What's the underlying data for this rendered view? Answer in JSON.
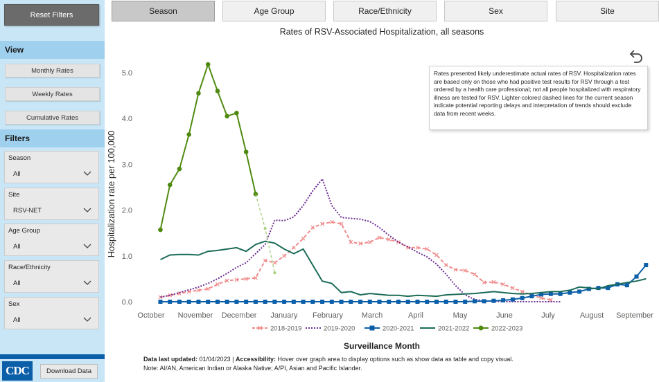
{
  "sidebar": {
    "reset_label": "Reset Filters",
    "view_title": "View",
    "view_buttons": [
      "Monthly Rates",
      "Weekly Rates",
      "Cumulative Rates"
    ],
    "filters_title": "Filters",
    "filters": [
      {
        "label": "Season",
        "value": "All"
      },
      {
        "label": "Site",
        "value": "RSV-NET"
      },
      {
        "label": "Age Group",
        "value": "All"
      },
      {
        "label": "Race/Ethnicity",
        "value": "All"
      },
      {
        "label": "Sex",
        "value": "All"
      }
    ],
    "logo_text": "CDC",
    "download_label": "Download Data"
  },
  "tabs": [
    "Season",
    "Age Group",
    "Race/Ethnicity",
    "Sex",
    "Site"
  ],
  "active_tab": "Season",
  "note": "Rates presented likely underestimate actual rates of RSV. Hospitalization rates are based only on those who had positive test results for RSV through a test ordered by a health care professional; not all people hospitalized with respiratory illness are tested for RSV. Lighter-colored dashed lines for the current season indicate potential reporting delays and interpretation of trends should exclude data from recent weeks.",
  "footer": {
    "updated_label": "Data last updated:",
    "updated_value": "01/04/2023",
    "separator": "|",
    "accessibility_label": "Accessibility:",
    "accessibility_text": "Hover over graph area to display options such as show data as table and copy visual.",
    "note": "Note: AI/AN, American Indian or Alaska Native; A/PI, Asian and Pacific Islander."
  },
  "chart_data": {
    "type": "line",
    "title": "Rates of RSV-Associated Hospitalization, all seasons",
    "xlabel": "Surveillance Month",
    "ylabel": "Hospitalization rate per 100,000",
    "categories": [
      "October",
      "November",
      "December",
      "January",
      "February",
      "March",
      "April",
      "May",
      "June",
      "July",
      "August",
      "September"
    ],
    "yticks": [
      "0.0",
      "1.0",
      "2.0",
      "3.0",
      "4.0",
      "5.0"
    ],
    "ylim": [
      0,
      5.3
    ],
    "x_unit": "surveillance week index (October start = 0, 52 weeks)",
    "xlim": [
      -2,
      52
    ],
    "legend_position": "bottom",
    "grid": false,
    "series": [
      {
        "name": "2018-2019",
        "color": "#f08b8b",
        "style": "dashed-x",
        "points": [
          [
            0,
            0.1
          ],
          [
            1,
            0.14
          ],
          [
            2,
            0.18
          ],
          [
            3,
            0.22
          ],
          [
            4,
            0.25
          ],
          [
            5,
            0.28
          ],
          [
            6,
            0.38
          ],
          [
            7,
            0.46
          ],
          [
            8,
            0.48
          ],
          [
            9,
            0.5
          ],
          [
            10,
            0.52
          ],
          [
            11,
            0.9
          ],
          [
            12,
            0.85
          ],
          [
            13,
            1.0
          ],
          [
            14,
            1.18
          ],
          [
            15,
            1.38
          ],
          [
            16,
            1.62
          ],
          [
            17,
            1.7
          ],
          [
            18,
            1.74
          ],
          [
            19,
            1.7
          ],
          [
            20,
            1.3
          ],
          [
            21,
            1.27
          ],
          [
            22,
            1.3
          ],
          [
            23,
            1.4
          ],
          [
            24,
            1.36
          ],
          [
            25,
            1.3
          ],
          [
            26,
            1.18
          ],
          [
            27,
            1.18
          ],
          [
            28,
            1.15
          ],
          [
            29,
            1.02
          ],
          [
            30,
            0.8
          ],
          [
            31,
            0.7
          ],
          [
            32,
            0.68
          ],
          [
            33,
            0.6
          ],
          [
            34,
            0.42
          ],
          [
            35,
            0.43
          ],
          [
            36,
            0.38
          ],
          [
            37,
            0.3
          ],
          [
            38,
            0.22
          ],
          [
            39,
            0.15
          ],
          [
            40,
            0.08
          ],
          [
            41,
            0.04
          ]
        ]
      },
      {
        "name": "2019-2020",
        "color": "#6a2c91",
        "style": "dotted",
        "points": [
          [
            0,
            0.1
          ],
          [
            1,
            0.14
          ],
          [
            2,
            0.2
          ],
          [
            3,
            0.26
          ],
          [
            4,
            0.32
          ],
          [
            5,
            0.4
          ],
          [
            6,
            0.5
          ],
          [
            7,
            0.62
          ],
          [
            8,
            0.75
          ],
          [
            9,
            0.85
          ],
          [
            10,
            1.05
          ],
          [
            11,
            1.25
          ],
          [
            12,
            1.78
          ],
          [
            13,
            1.77
          ],
          [
            14,
            1.85
          ],
          [
            15,
            2.1
          ],
          [
            16,
            2.42
          ],
          [
            17,
            2.68
          ],
          [
            18,
            2.1
          ],
          [
            19,
            1.84
          ],
          [
            20,
            1.82
          ],
          [
            21,
            1.8
          ],
          [
            22,
            1.75
          ],
          [
            23,
            1.62
          ],
          [
            24,
            1.45
          ],
          [
            25,
            1.3
          ],
          [
            26,
            1.2
          ],
          [
            27,
            1.08
          ],
          [
            28,
            0.98
          ],
          [
            29,
            0.82
          ],
          [
            30,
            0.6
          ],
          [
            31,
            0.35
          ],
          [
            32,
            0.15
          ],
          [
            33,
            0.05
          ],
          [
            34,
            0.02
          ],
          [
            35,
            0.01
          ],
          [
            36,
            0.0
          ],
          [
            37,
            0.0
          ],
          [
            38,
            0.0
          ],
          [
            39,
            0.0
          ],
          [
            40,
            0.0
          ],
          [
            41,
            0.0
          ],
          [
            42,
            0.0
          ]
        ]
      },
      {
        "name": "2020-2021",
        "color": "#0b5ea8",
        "style": "solid-square",
        "points": [
          [
            0,
            0.0
          ],
          [
            1,
            0.0
          ],
          [
            2,
            0.0
          ],
          [
            3,
            0.0
          ],
          [
            4,
            0.0
          ],
          [
            5,
            0.0
          ],
          [
            6,
            0.0
          ],
          [
            7,
            0.0
          ],
          [
            8,
            0.0
          ],
          [
            9,
            0.0
          ],
          [
            10,
            0.0
          ],
          [
            11,
            0.0
          ],
          [
            12,
            0.0
          ],
          [
            13,
            0.0
          ],
          [
            14,
            0.0
          ],
          [
            15,
            0.0
          ],
          [
            16,
            0.0
          ],
          [
            17,
            0.0
          ],
          [
            18,
            0.0
          ],
          [
            19,
            0.0
          ],
          [
            20,
            0.0
          ],
          [
            21,
            0.0
          ],
          [
            22,
            0.0
          ],
          [
            23,
            0.0
          ],
          [
            24,
            0.0
          ],
          [
            25,
            0.0
          ],
          [
            26,
            0.0
          ],
          [
            27,
            0.0
          ],
          [
            28,
            0.0
          ],
          [
            29,
            0.0
          ],
          [
            30,
            0.0
          ],
          [
            31,
            0.0
          ],
          [
            32,
            0.0
          ],
          [
            33,
            0.01
          ],
          [
            34,
            0.01
          ],
          [
            35,
            0.02
          ],
          [
            36,
            0.03
          ],
          [
            37,
            0.05
          ],
          [
            38,
            0.08
          ],
          [
            39,
            0.12
          ],
          [
            40,
            0.16
          ],
          [
            41,
            0.17
          ],
          [
            42,
            0.17
          ],
          [
            43,
            0.2
          ],
          [
            44,
            0.22
          ],
          [
            45,
            0.28
          ],
          [
            46,
            0.3
          ],
          [
            47,
            0.3
          ],
          [
            48,
            0.38
          ],
          [
            49,
            0.36
          ],
          [
            50,
            0.55
          ],
          [
            51,
            0.8
          ]
        ]
      },
      {
        "name": "2021-2022",
        "color": "#1a6b57",
        "style": "solid",
        "points": [
          [
            0,
            0.92
          ],
          [
            1,
            1.02
          ],
          [
            2,
            1.03
          ],
          [
            3,
            1.03
          ],
          [
            4,
            1.02
          ],
          [
            5,
            1.1
          ],
          [
            6,
            1.12
          ],
          [
            7,
            1.15
          ],
          [
            8,
            1.18
          ],
          [
            9,
            1.1
          ],
          [
            10,
            1.25
          ],
          [
            11,
            1.32
          ],
          [
            12,
            1.28
          ],
          [
            13,
            1.15
          ],
          [
            14,
            1.05
          ],
          [
            15,
            1.15
          ],
          [
            16,
            0.8
          ],
          [
            17,
            0.45
          ],
          [
            18,
            0.4
          ],
          [
            19,
            0.2
          ],
          [
            20,
            0.22
          ],
          [
            21,
            0.15
          ],
          [
            22,
            0.18
          ],
          [
            23,
            0.16
          ],
          [
            24,
            0.14
          ],
          [
            25,
            0.14
          ],
          [
            26,
            0.12
          ],
          [
            27,
            0.14
          ],
          [
            28,
            0.13
          ],
          [
            29,
            0.12
          ],
          [
            30,
            0.15
          ],
          [
            31,
            0.16
          ],
          [
            32,
            0.17
          ],
          [
            33,
            0.18
          ],
          [
            34,
            0.2
          ],
          [
            35,
            0.22
          ],
          [
            36,
            0.2
          ],
          [
            37,
            0.18
          ],
          [
            38,
            0.17
          ],
          [
            39,
            0.18
          ],
          [
            40,
            0.2
          ],
          [
            41,
            0.22
          ],
          [
            42,
            0.22
          ],
          [
            43,
            0.25
          ],
          [
            44,
            0.32
          ],
          [
            45,
            0.3
          ],
          [
            46,
            0.28
          ],
          [
            47,
            0.35
          ],
          [
            48,
            0.38
          ],
          [
            49,
            0.42
          ],
          [
            50,
            0.45
          ],
          [
            51,
            0.5
          ]
        ]
      },
      {
        "name": "2022-2023",
        "color": "#4f8a10",
        "style": "solid-dot",
        "points": [
          [
            0,
            1.57
          ],
          [
            1,
            2.55
          ],
          [
            2,
            2.9
          ],
          [
            3,
            3.65
          ],
          [
            4,
            4.55
          ],
          [
            5,
            5.18
          ],
          [
            6,
            4.6
          ],
          [
            7,
            4.05
          ],
          [
            8,
            4.12
          ],
          [
            9,
            3.27
          ],
          [
            10,
            2.35
          ]
        ],
        "dashed_points": [
          [
            10,
            2.35
          ],
          [
            11,
            1.6
          ],
          [
            12,
            0.63
          ]
        ]
      }
    ]
  }
}
